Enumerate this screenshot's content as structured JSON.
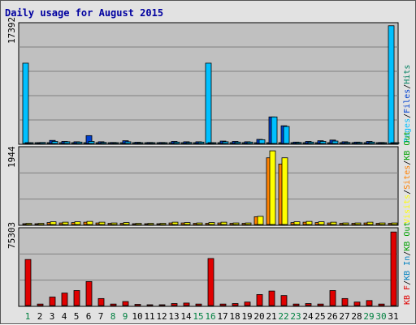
{
  "chart_data": {
    "type": "bar",
    "title": "Daily usage for August 2015",
    "categories": [
      "1",
      "2",
      "3",
      "4",
      "5",
      "6",
      "7",
      "8",
      "9",
      "10",
      "11",
      "12",
      "13",
      "14",
      "15",
      "16",
      "17",
      "18",
      "19",
      "20",
      "21",
      "22",
      "23",
      "24",
      "25",
      "26",
      "27",
      "28",
      "29",
      "30",
      "31"
    ],
    "weekend_days": [
      "1",
      "8",
      "9",
      "15",
      "16",
      "22",
      "23",
      "29",
      "30"
    ],
    "colors": {
      "title": "#0000a0",
      "weekday_label": "#000000",
      "weekend_label": "#008040",
      "pages": "#00c0ff",
      "files": "#0040d0",
      "hits": "#008060",
      "visits": "#ffff00",
      "sites": "#ff8000",
      "kb_in": "#0080c0",
      "kb_out": "#00a000",
      "kb_f": "#e00000",
      "panel_bg": "#c0c0c0",
      "frame_bg": "#e2e2e2"
    },
    "panels": [
      {
        "id": "hits",
        "max_label": "17392",
        "ymax": 17392,
        "legend": [
          {
            "text": "Pages",
            "color": "#00c0ff"
          },
          {
            "text": "/",
            "color": "#000000"
          },
          {
            "text": "Files",
            "color": "#0040d0"
          },
          {
            "text": "/",
            "color": "#000000"
          },
          {
            "text": "Hits",
            "color": "#008060"
          }
        ],
        "series": [
          {
            "name": "Pages",
            "color": "#00c0ff",
            "values": [
              11800,
              0,
              0,
              0,
              0,
              0,
              0,
              0,
              0,
              0,
              0,
              0,
              0,
              0,
              0,
              11800,
              0,
              0,
              0,
              0,
              0,
              0,
              0,
              0,
              0,
              0,
              0,
              0,
              0,
              0,
              17300
            ]
          },
          {
            "name": "Files",
            "color": "#0040d0",
            "values": [
              0,
              0,
              450,
              300,
              250,
              1150,
              250,
              150,
              400,
              180,
              150,
              150,
              300,
              250,
              250,
              0,
              350,
              300,
              250,
              600,
              3900,
              2600,
              200,
              300,
              400,
              500,
              250,
              200,
              300,
              150,
              0
            ]
          },
          {
            "name": "Hits",
            "color": "#00c0ff",
            "values": [
              0,
              150,
              300,
              250,
              200,
              300,
              150,
              100,
              250,
              120,
              100,
              100,
              200,
              150,
              200,
              0,
              250,
              200,
              200,
              550,
              3900,
              2500,
              150,
              200,
              300,
              350,
              150,
              150,
              200,
              100,
              0
            ]
          }
        ]
      },
      {
        "id": "visits",
        "max_label": "1944",
        "ymax": 1944,
        "legend": [
          {
            "text": "Visits",
            "color": "#ffff00"
          },
          {
            "text": "/",
            "color": "#000000"
          },
          {
            "text": "Sites",
            "color": "#ff8000"
          },
          {
            "text": "/",
            "color": "#000000"
          },
          {
            "text": "KB Out",
            "color": "#00a000"
          }
        ],
        "series": [
          {
            "name": "Sites",
            "color": "#ff8000",
            "values": [
              20,
              20,
              50,
              40,
              50,
              60,
              40,
              30,
              30,
              20,
              20,
              20,
              40,
              40,
              30,
              30,
              40,
              30,
              30,
              200,
              1720,
              1560,
              50,
              60,
              50,
              40,
              30,
              30,
              40,
              30,
              30
            ]
          },
          {
            "name": "Visits",
            "color": "#ffff00",
            "values": [
              30,
              30,
              70,
              60,
              70,
              80,
              60,
              40,
              50,
              30,
              30,
              30,
              60,
              50,
              40,
              50,
              60,
              40,
              40,
              210,
              1900,
              1720,
              70,
              80,
              70,
              60,
              40,
              40,
              60,
              40,
              40
            ]
          }
        ]
      },
      {
        "id": "kbytes",
        "max_label": "75303",
        "ymax": 75303,
        "legend": [
          {
            "text": "KB F",
            "color": "#e00000"
          },
          {
            "text": "/",
            "color": "#000000"
          },
          {
            "text": "KB In",
            "color": "#0080c0"
          },
          {
            "text": "/",
            "color": "#000000"
          },
          {
            "text": "KB Out",
            "color": "#00a000"
          }
        ],
        "series": [
          {
            "name": "KB F",
            "color": "#e00000",
            "values": [
              46000,
              1500,
              8500,
              12500,
              15000,
              24000,
              7000,
              1500,
              4000,
              1200,
              800,
              800,
              2000,
              2500,
              1500,
              47000,
              1500,
              2000,
              3500,
              11000,
              14500,
              10000,
              1500,
              2000,
              1500,
              15000,
              7000,
              3500,
              5000,
              1500,
              73500
            ]
          }
        ]
      }
    ]
  }
}
